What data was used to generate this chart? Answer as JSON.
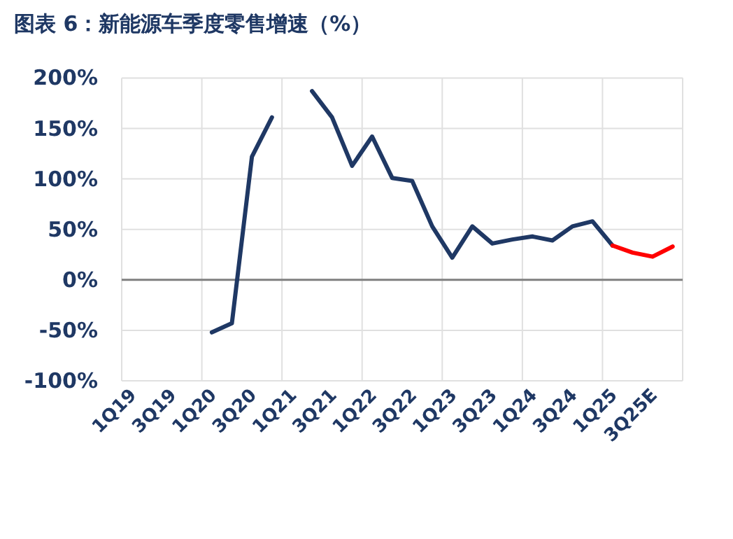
{
  "chart_data": {
    "type": "line",
    "title": "图表 6：新能源车季度零售增速（%）",
    "categories": [
      "1Q19",
      null,
      "3Q19",
      null,
      "1Q20",
      null,
      "3Q20",
      null,
      "1Q21",
      null,
      "3Q21",
      null,
      "1Q22",
      null,
      "3Q22",
      null,
      "1Q23",
      null,
      "3Q23",
      null,
      "1Q24",
      null,
      "3Q24",
      null,
      "1Q25",
      null,
      "3Q25E",
      null
    ],
    "series": [
      {
        "color": "#1f3864",
        "values": [
          null,
          null,
          null,
          null,
          -52,
          -43,
          122,
          161,
          null,
          187,
          161,
          113,
          142,
          101,
          98,
          53,
          22,
          53,
          36,
          40,
          43,
          39,
          53,
          58,
          34,
          null,
          null,
          null
        ]
      },
      {
        "color": "#ff0000",
        "values": [
          null,
          null,
          null,
          null,
          null,
          null,
          null,
          null,
          null,
          null,
          null,
          null,
          null,
          null,
          null,
          null,
          null,
          null,
          null,
          null,
          null,
          null,
          null,
          null,
          34,
          27,
          23,
          33
        ]
      }
    ],
    "ylim": [
      -100,
      200
    ],
    "yticks": [
      {
        "value": -100,
        "label": "-100%"
      },
      {
        "value": -50,
        "label": "-50%"
      },
      {
        "value": 0,
        "label": "0%"
      },
      {
        "value": 50,
        "label": "50%"
      },
      {
        "value": 100,
        "label": "100%"
      },
      {
        "value": 150,
        "label": "150%"
      },
      {
        "value": 200,
        "label": "200%"
      }
    ],
    "grid": true,
    "ref_lines": [
      {
        "axis": "y",
        "value": 0,
        "color": "#808080"
      }
    ],
    "line_style": "solid",
    "marker": "none"
  }
}
